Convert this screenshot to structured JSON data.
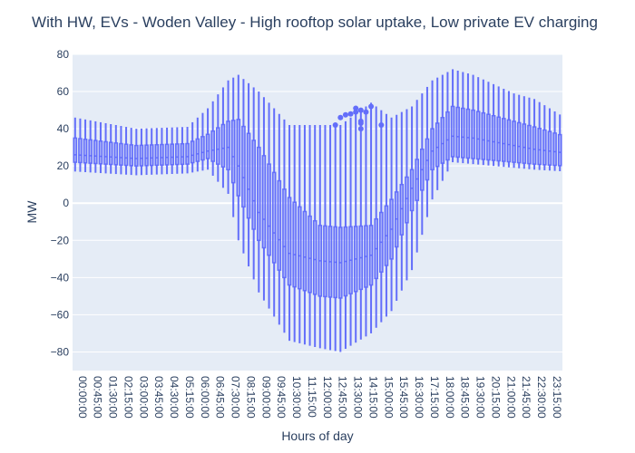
{
  "chart_data": {
    "type": "box",
    "title": "With HW, EVs - Woden Valley - High rooftop solar uptake, Low private EV charging",
    "xlabel": "Hours of day",
    "ylabel": "MW",
    "ylim": [
      -90,
      80
    ],
    "yticks": [
      -80,
      -60,
      -40,
      -20,
      0,
      20,
      40,
      60,
      80
    ],
    "xtick_labels": [
      "00:00:00",
      "00:45:00",
      "01:30:00",
      "02:15:00",
      "03:00:00",
      "03:45:00",
      "04:30:00",
      "05:15:00",
      "06:00:00",
      "06:45:00",
      "07:30:00",
      "08:15:00",
      "09:00:00",
      "09:45:00",
      "10:30:00",
      "11:15:00",
      "12:00:00",
      "12:45:00",
      "13:30:00",
      "14:15:00",
      "15:00:00",
      "15:45:00",
      "16:30:00",
      "17:15:00",
      "18:00:00",
      "18:45:00",
      "19:30:00",
      "20:15:00",
      "21:00:00",
      "21:45:00",
      "22:30:00",
      "23:15:00"
    ],
    "n_boxes": 96,
    "interval_minutes": 15,
    "grid": true,
    "legend": "none",
    "colors": {
      "box": "#636efa",
      "box_fill": "rgba(99,110,250,0.5)",
      "plot_bg": "#e5ecf6",
      "grid": "#ffffff",
      "text": "#2a3f5f"
    },
    "anchors": {
      "hour": [
        0,
        3,
        5.5,
        6.5,
        7.5,
        8,
        9,
        10.5,
        12,
        13,
        14.5,
        15.5,
        16.5,
        17.5,
        18.5,
        19.5,
        20.5,
        21.5,
        22.5,
        24
      ],
      "whisker_high": [
        46,
        40,
        41,
        51,
        66,
        69,
        60,
        42,
        42,
        42,
        54,
        46,
        52,
        66,
        72,
        69,
        64,
        59,
        56,
        46
      ],
      "q3": [
        35,
        31,
        32,
        37,
        44,
        45,
        30,
        3,
        -12,
        -13,
        -12,
        2,
        18,
        40,
        52,
        50,
        47,
        44,
        41,
        36
      ],
      "median": [
        26,
        24,
        25,
        28,
        30,
        20,
        -5,
        -27,
        -31,
        -32,
        -28,
        -14,
        8,
        28,
        36,
        35,
        33,
        31,
        29,
        27
      ],
      "q1": [
        22,
        20,
        21,
        24,
        18,
        4,
        -20,
        -44,
        -50,
        -51,
        -44,
        -30,
        -4,
        18,
        25,
        24,
        23,
        22,
        21,
        20
      ],
      "whisker_low": [
        17,
        15,
        16,
        18,
        5,
        -20,
        -48,
        -74,
        -78,
        -80,
        -70,
        -58,
        -36,
        2,
        22,
        21,
        20,
        19,
        18,
        17
      ]
    },
    "outliers": [
      {
        "x": 12.75,
        "y": 42
      },
      {
        "x": 13,
        "y": 46
      },
      {
        "x": 13.25,
        "y": 47.5
      },
      {
        "x": 13.5,
        "y": 48
      },
      {
        "x": 13.75,
        "y": 49
      },
      {
        "x": 13.75,
        "y": 51
      },
      {
        "x": 14,
        "y": 50
      },
      {
        "x": 14,
        "y": 44
      },
      {
        "x": 14,
        "y": 43
      },
      {
        "x": 14,
        "y": 40
      },
      {
        "x": 14.25,
        "y": 49
      },
      {
        "x": 14.5,
        "y": 52
      },
      {
        "x": 15,
        "y": 42
      }
    ]
  }
}
